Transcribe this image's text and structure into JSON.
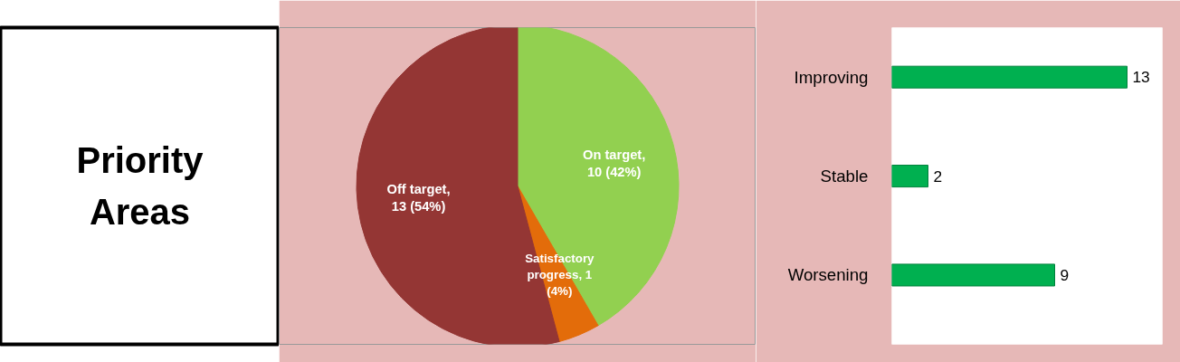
{
  "chart_data": [
    {
      "type": "other",
      "title": "Priority Areas"
    },
    {
      "type": "pie",
      "categories": [
        "On target, 10 (42%)",
        "Satisfactory progress, 1 (4%)",
        "Off target, 13 (54%)"
      ],
      "values": [
        10,
        1,
        13
      ],
      "colors": [
        "#92d050",
        "#e36c0a",
        "#943634"
      ]
    },
    {
      "type": "bar",
      "orientation": "horizontal",
      "categories": [
        "Improving",
        "Stable",
        "Worsening"
      ],
      "values": [
        13,
        2,
        9
      ],
      "color": "#00b050",
      "data_labels": true
    }
  ]
}
